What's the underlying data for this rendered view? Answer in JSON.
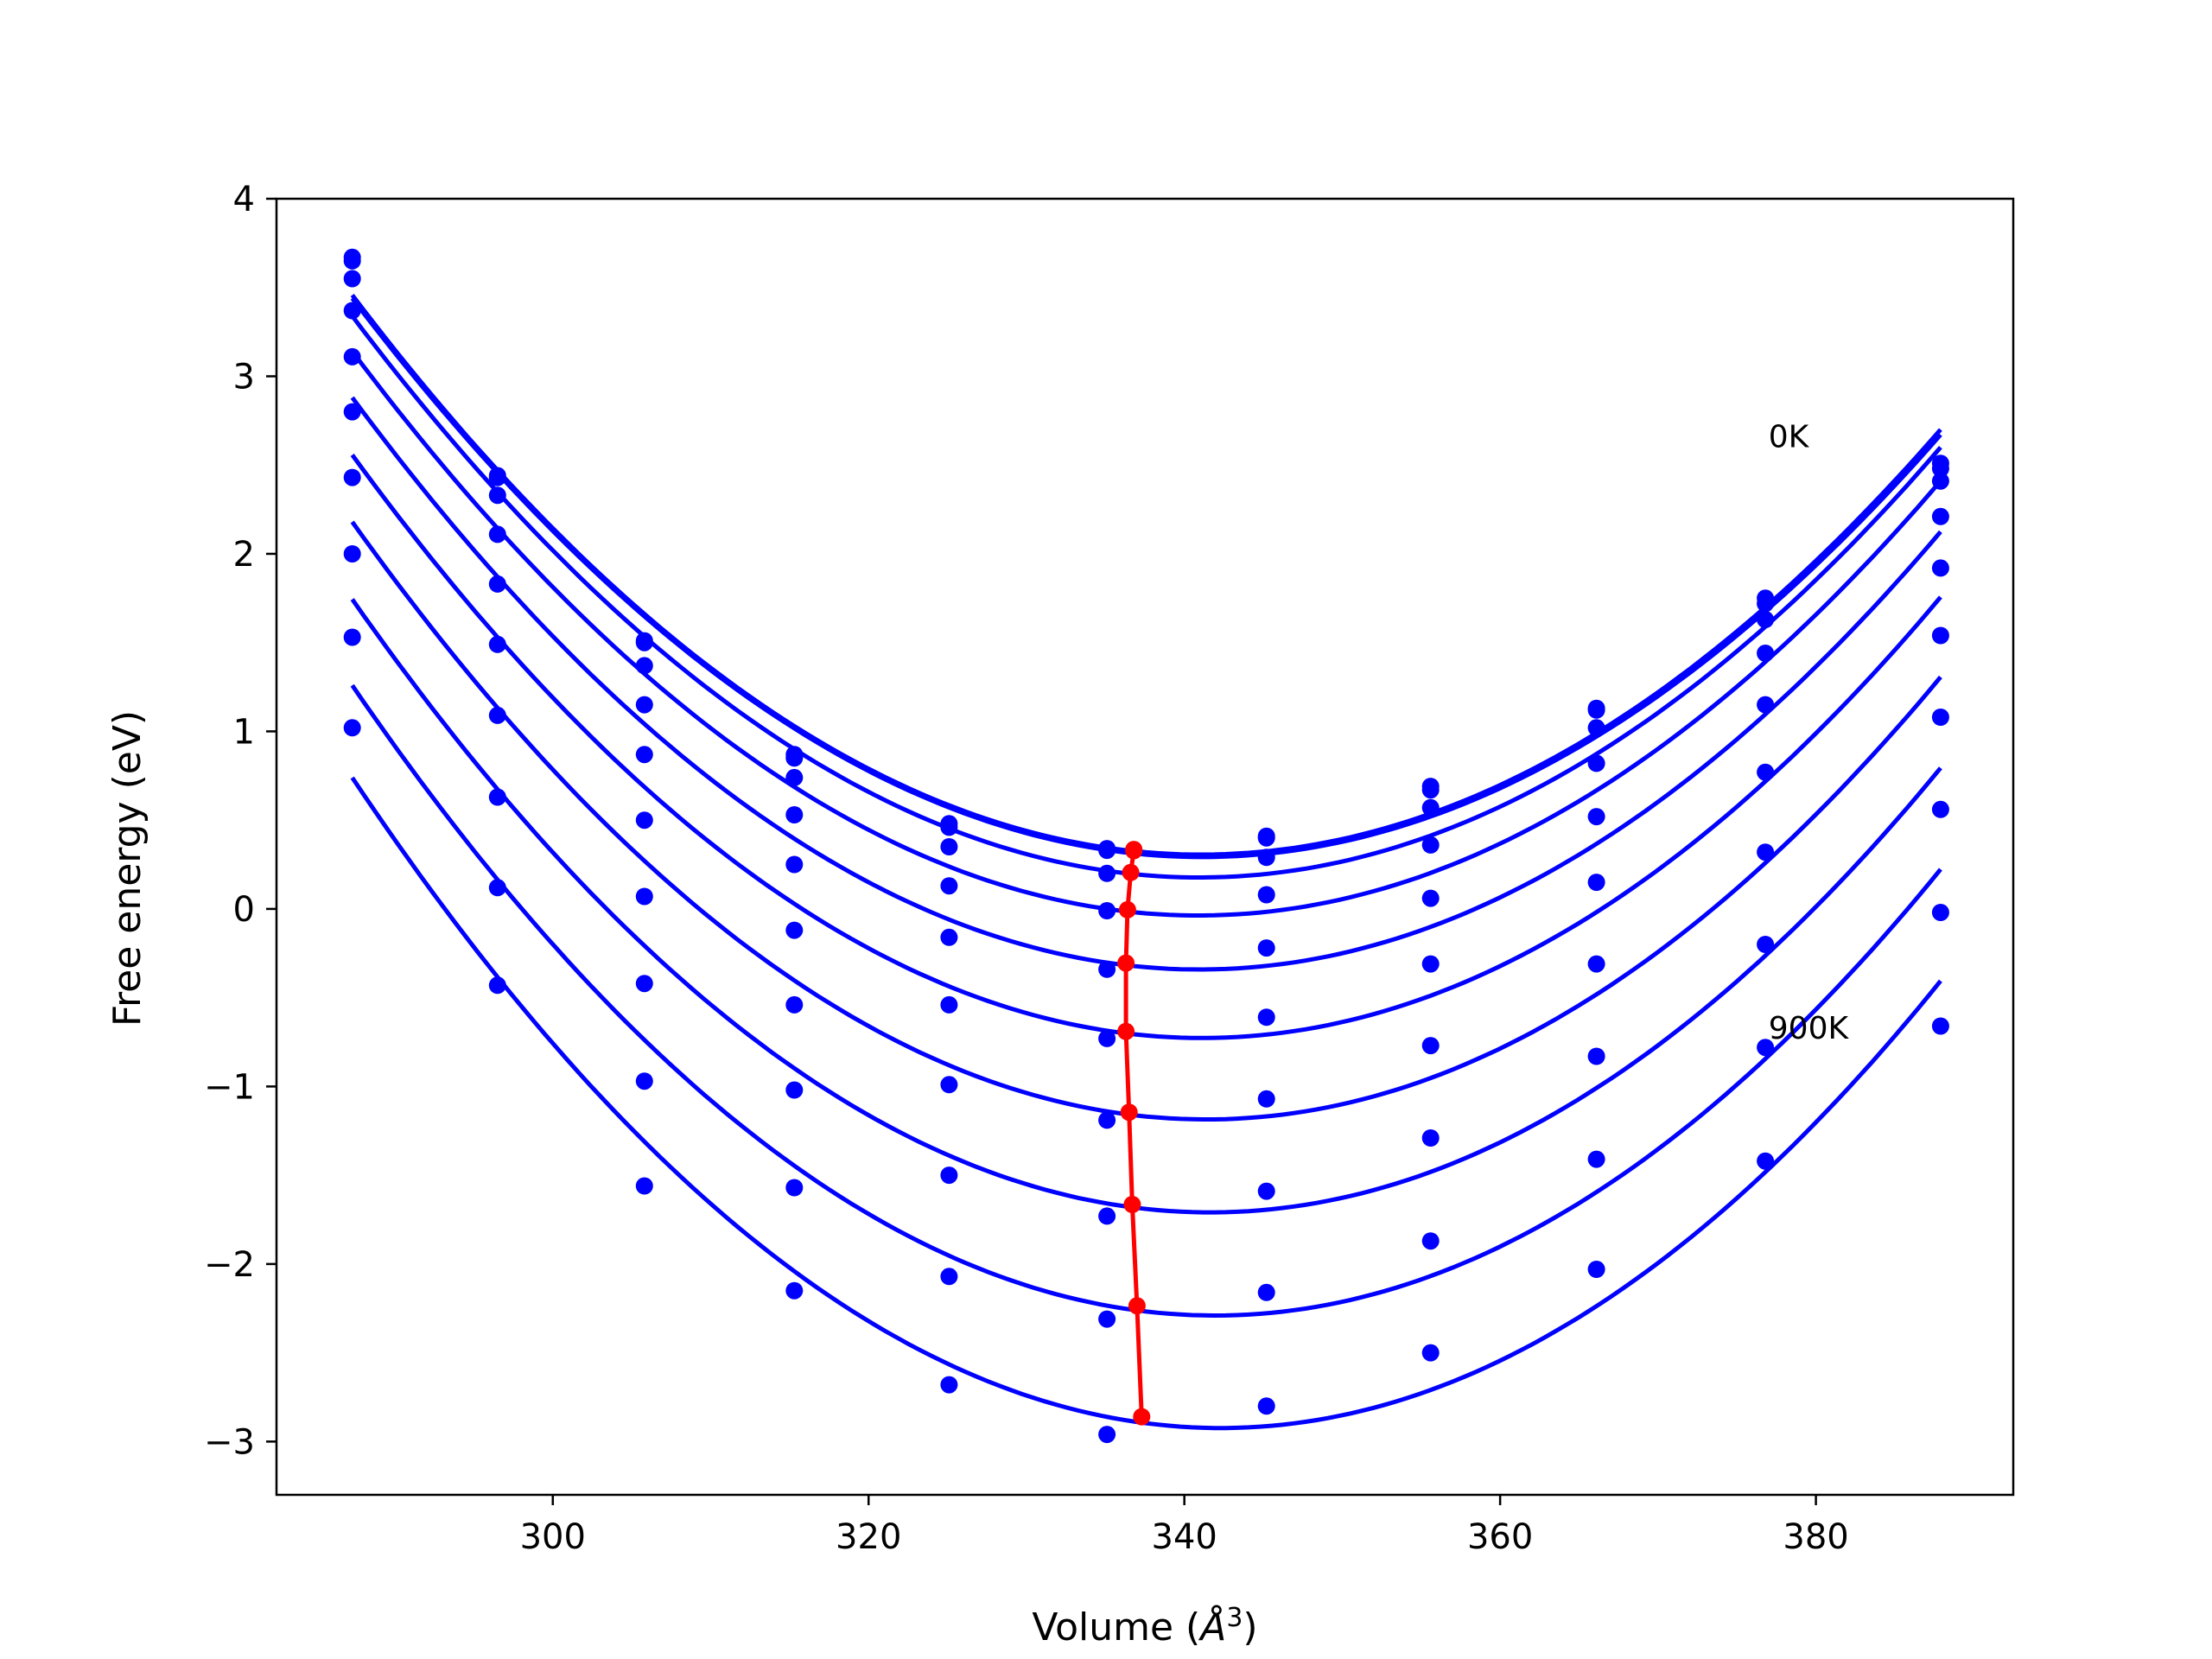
{
  "colors": {
    "curve": "#0000ff",
    "min_line": "#ff0000",
    "axes": "#000000",
    "background": "#ffffff"
  },
  "chart_data": {
    "type": "line",
    "xlabel": "Volume (Å³)",
    "ylabel": "Free energy (eV)",
    "xlabel_parts": {
      "base": "Volume (",
      "symbol": "Å",
      "sup": "3",
      "tail": ")"
    },
    "xlim": [
      282.5,
      392.5
    ],
    "ylim": [
      -3.3,
      4.0
    ],
    "xticks": [
      300,
      320,
      340,
      360,
      380
    ],
    "yticks": [
      -3,
      -2,
      -1,
      0,
      1,
      2,
      3,
      4
    ],
    "xtick_labels": [
      "300",
      "320",
      "340",
      "360",
      "380"
    ],
    "ytick_labels": [
      "−3",
      "−2",
      "−1",
      "0",
      "1",
      "2",
      "3",
      "4"
    ],
    "grid": false,
    "annotations": [
      {
        "text": "0K",
        "x": 377.0,
        "y": 2.6
      },
      {
        "text": "900K",
        "x": 377.0,
        "y": -0.73
      }
    ],
    "volumes": [
      287.3,
      296.5,
      305.8,
      315.3,
      325.1,
      335.1,
      345.2,
      355.6,
      366.1,
      376.8,
      387.9
    ],
    "series": [
      {
        "values": [
          3.67,
          2.44,
          1.51,
          0.87,
          0.48,
          0.34,
          0.41,
          0.69,
          1.13,
          1.75,
          2.51
        ],
        "min_volume": 336.8,
        "min_energy": 0.335
      },
      {
        "values": [
          3.65,
          2.43,
          1.5,
          0.85,
          0.46,
          0.33,
          0.4,
          0.67,
          1.12,
          1.72,
          2.48
        ],
        "min_volume": 336.8,
        "min_energy": 0.328
      },
      {
        "values": [
          3.55,
          2.33,
          1.37,
          0.74,
          0.35,
          0.2,
          0.29,
          0.57,
          1.02,
          1.63,
          2.41
        ],
        "min_volume": 336.6,
        "min_energy": 0.205
      },
      {
        "values": [
          3.37,
          2.11,
          1.15,
          0.53,
          0.13,
          -0.01,
          0.08,
          0.36,
          0.82,
          1.44,
          2.21
        ],
        "min_volume": 336.4,
        "min_energy": -0.005
      },
      {
        "values": [
          3.11,
          1.83,
          0.87,
          0.25,
          -0.16,
          -0.34,
          -0.22,
          0.06,
          0.52,
          1.15,
          1.92
        ],
        "min_volume": 336.3,
        "min_energy": -0.305
      },
      {
        "values": [
          2.8,
          1.49,
          0.5,
          -0.12,
          -0.54,
          -0.73,
          -0.61,
          -0.31,
          0.15,
          0.77,
          1.54
        ],
        "min_volume": 336.3,
        "min_energy": -0.69
      },
      {
        "values": [
          2.43,
          1.09,
          0.07,
          -0.54,
          -0.99,
          -1.19,
          -1.07,
          -0.77,
          -0.31,
          0.32,
          1.08
        ],
        "min_volume": 336.5,
        "min_energy": -1.145
      },
      {
        "values": [
          2.0,
          0.63,
          -0.42,
          -1.02,
          -1.5,
          -1.73,
          -1.59,
          -1.29,
          -0.83,
          -0.2,
          0.56
        ],
        "min_volume": 336.7,
        "min_energy": -1.665
      },
      {
        "values": [
          1.53,
          0.12,
          -0.97,
          -1.57,
          -2.07,
          -2.31,
          -2.16,
          -1.87,
          -1.41,
          -0.78,
          -0.02
        ],
        "min_volume": 337.0,
        "min_energy": -2.235
      },
      {
        "values": [
          1.02,
          -0.43,
          -1.56,
          -2.15,
          -2.68,
          -2.96,
          -2.8,
          -2.5,
          -2.03,
          -1.42,
          -0.66
        ],
        "min_volume": 337.3,
        "min_energy": -2.86
      }
    ]
  }
}
